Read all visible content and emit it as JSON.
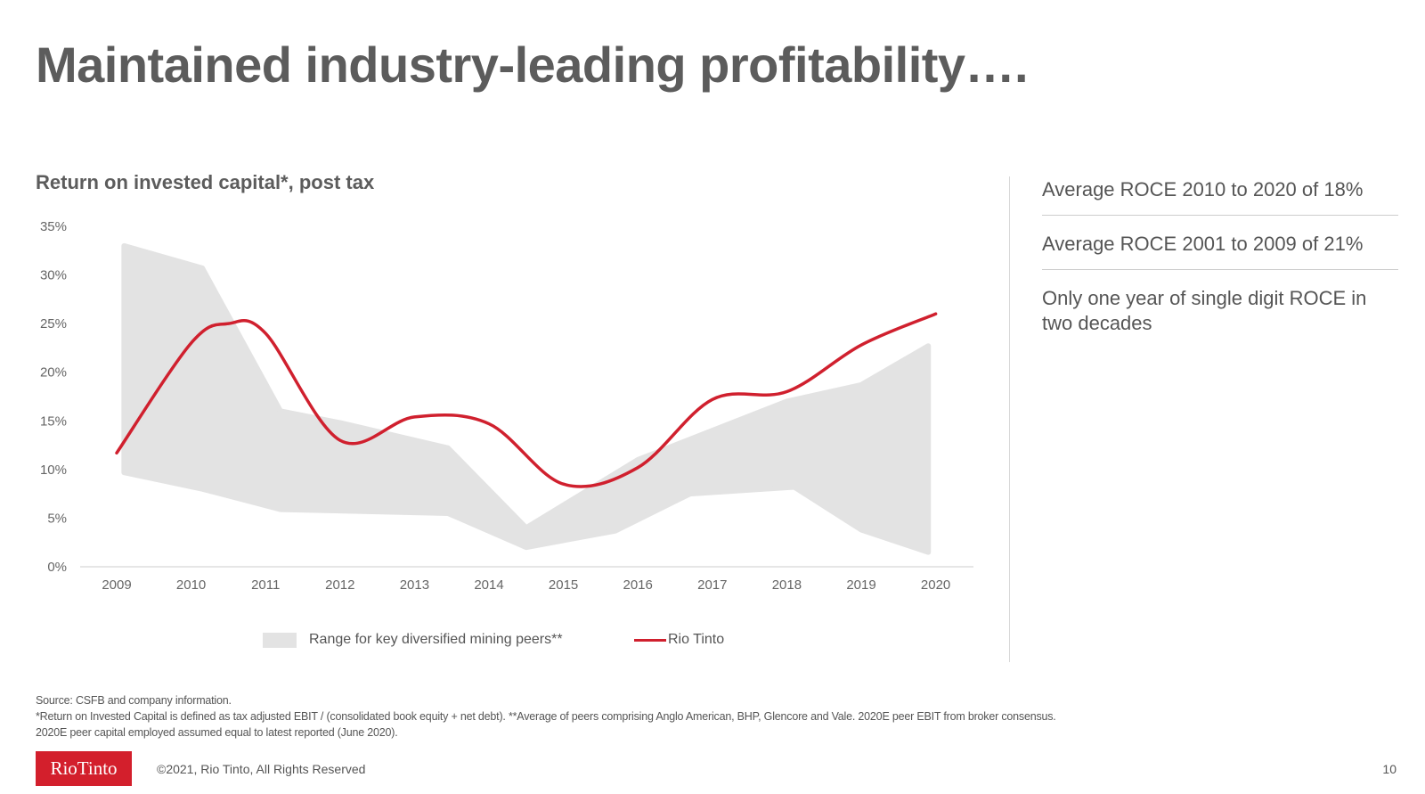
{
  "title": "Maintained industry-leading profitability….",
  "chart_data": {
    "type": "line",
    "title": "Return on invested capital*, post tax",
    "ylim": [
      0,
      35
    ],
    "yticks": [
      "0%",
      "5%",
      "10%",
      "15%",
      "20%",
      "25%",
      "30%",
      "35%"
    ],
    "ytick_values": [
      0,
      5,
      10,
      15,
      20,
      25,
      30,
      35
    ],
    "categories": [
      "2009",
      "2010",
      "2011",
      "2012",
      "2013",
      "2014",
      "2015",
      "2016",
      "2017",
      "2018",
      "2019",
      "2020"
    ],
    "grid": false,
    "legend_position": "bottom",
    "series": [
      {
        "name": "Rio Tinto",
        "type": "line",
        "color": "#d0202e",
        "x": [
          2009,
          2010,
          2010.5,
          2011,
          2012,
          2013,
          2014,
          2015,
          2016,
          2017,
          2018,
          2019,
          2020
        ],
        "values": [
          11.7,
          23,
          25,
          24,
          13,
          15.4,
          14.7,
          8.5,
          10.2,
          17.2,
          18,
          22.8,
          26
        ]
      },
      {
        "name": "Range for key diversified mining peers**",
        "type": "range",
        "color": "#e3e3e3",
        "upper": {
          "x": [
            2009.1,
            2010.15,
            2011.2,
            2012,
            2013.45,
            2014.5,
            2016,
            2017,
            2018,
            2019,
            2019.9
          ],
          "values": [
            33,
            30.7,
            16,
            14.8,
            12.2,
            4,
            11,
            14,
            17,
            18.7,
            22.7
          ]
        },
        "lower": {
          "x": [
            2009.1,
            2010.15,
            2011.2,
            2013.45,
            2014.5,
            2015.7,
            2016.7,
            2018.1,
            2019,
            2019.9
          ],
          "values": [
            9.7,
            8,
            5.9,
            5.5,
            2,
            3.7,
            7.5,
            8.2,
            3.8,
            1.5
          ]
        }
      }
    ]
  },
  "legend": {
    "peers": "Range for key diversified mining peers**",
    "rio": "Rio Tinto"
  },
  "panel": [
    "Average ROCE 2010 to 2020 of 18%",
    "Average ROCE 2001 to 2009 of 21%",
    "Only one year of single digit ROCE in two decades"
  ],
  "notes": [
    "Source: CSFB and company information.",
    "*Return on Invested Capital is defined as tax adjusted EBIT / (consolidated book equity + net debt). **Average of peers comprising Anglo American, BHP, Glencore and Vale. 2020E peer EBIT from broker consensus.",
    "2020E peer capital employed assumed equal to latest reported (June 2020)."
  ],
  "logo_text": "RioTinto",
  "brand_color": "#d31f2c",
  "copyright": "©2021, Rio Tinto, All Rights Reserved",
  "page_number": "10"
}
